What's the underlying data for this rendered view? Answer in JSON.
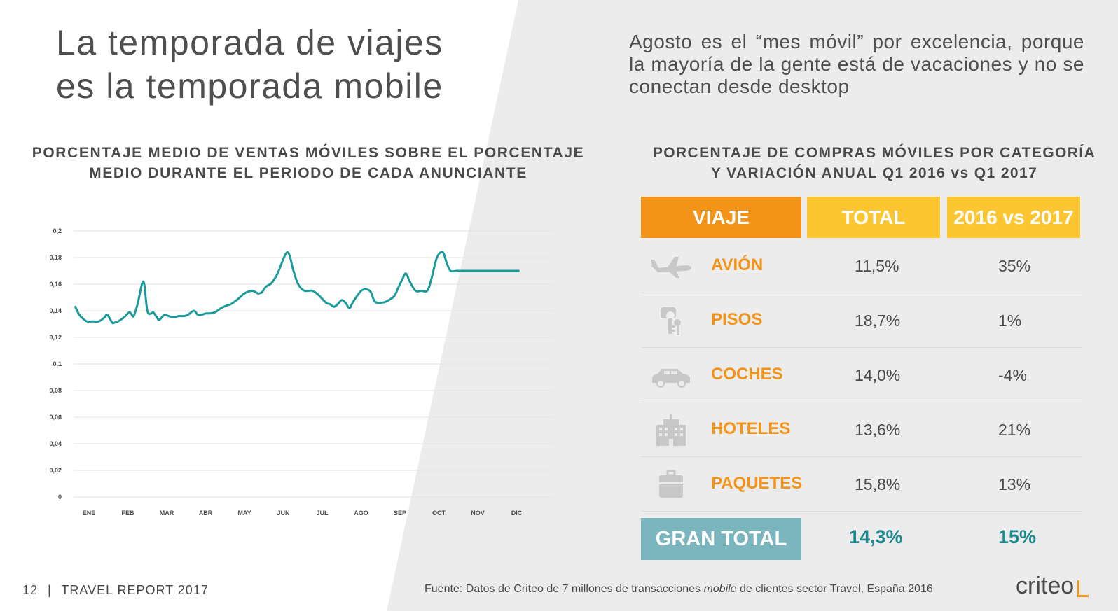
{
  "title_lines": [
    "La temporada de viajes",
    "es la temporada mobile"
  ],
  "intro": "Agosto es el “mes móvil” por excelencia, porque la mayoría de la gente está de vacaciones y no se conectan desde desktop",
  "chart_title_lines": [
    "PORCENTAJE MEDIO DE VENTAS MÓVILES SOBRE EL PORCENTAJE",
    "MEDIO DURANTE EL PERIODO DE CADA ANUNCIANTE"
  ],
  "table_title_lines": [
    "PORCENTAJE DE COMPRAS MÓVILES POR CATEGORÍA",
    "Y VARIACIÓN ANUAL Q1 2016 vs Q1 2017"
  ],
  "table": {
    "headers": {
      "category": "VIAJE",
      "total": "TOTAL",
      "variation": "2016 vs 2017"
    },
    "rows": [
      {
        "icon": "airplane-icon",
        "category": "AVIÓN",
        "total": "11,5%",
        "variation": "35%"
      },
      {
        "icon": "keys-icon",
        "category": "PISOS",
        "total": "18,7%",
        "variation": "1%"
      },
      {
        "icon": "car-icon",
        "category": "COCHES",
        "total": "14,0%",
        "variation": "-4%"
      },
      {
        "icon": "hotel-icon",
        "category": "HOTELES",
        "total": "13,6%",
        "variation": "21%"
      },
      {
        "icon": "suitcase-icon",
        "category": "PAQUETES",
        "total": "15,8%",
        "variation": "13%"
      }
    ],
    "grand_total": {
      "label": "GRAN TOTAL",
      "total": "14,3%",
      "variation": "15%"
    }
  },
  "footer": {
    "page": "12",
    "divider": "|",
    "report": "TRAVEL REPORT 2017",
    "source_before": "Fuente: Datos de Criteo de 7 millones de transacciones ",
    "source_italic": "mobile",
    "source_after": " de clientes sector Travel, España 2016",
    "logo": "criteo"
  },
  "colors": {
    "orange": "#f39318",
    "yellow": "#fcc630",
    "teal_line": "#1a9a9a",
    "teal_box": "#7bb6bf",
    "teal_text": "#1e8a90",
    "icon_gray": "#c8c8c8"
  },
  "chart_data": {
    "type": "line",
    "title": "",
    "xlabel": "",
    "ylabel": "",
    "categories": [
      "ENE",
      "FEB",
      "MAR",
      "ABR",
      "MAY",
      "JUN",
      "JUL",
      "AGO",
      "SEP",
      "OCT",
      "NOV",
      "DIC"
    ],
    "y_ticks": [
      "0",
      "0,02",
      "0,04",
      "0,06",
      "0,08",
      "0,1",
      "0,12",
      "0,14",
      "0,16",
      "0,18",
      "0,2"
    ],
    "ylim": [
      0,
      0.2
    ],
    "grid": true,
    "series": [
      {
        "x": [
          0.0,
          0.1,
          0.2,
          0.3,
          0.45,
          0.6,
          0.75,
          0.8,
          0.85,
          0.95,
          1.0,
          1.1,
          1.25,
          1.35,
          1.4,
          1.45,
          1.5,
          1.6,
          1.75,
          1.85,
          1.95,
          2.0,
          2.05,
          2.1,
          2.15,
          2.22,
          2.3,
          2.4,
          2.55,
          2.65,
          2.8,
          2.9,
          3.05,
          3.15,
          3.25,
          3.35,
          3.45,
          3.6,
          3.75,
          3.9,
          4.0,
          4.15,
          4.35,
          4.55,
          4.7,
          4.8,
          4.9,
          5.05,
          5.2,
          5.45,
          5.6,
          5.7,
          5.8,
          5.9,
          6.0,
          6.1,
          6.25,
          6.45,
          6.55,
          6.65,
          6.75,
          6.85,
          6.95,
          7.05,
          7.15,
          7.35,
          7.5,
          7.6,
          7.7,
          7.85,
          8.0,
          8.2,
          8.3,
          8.4,
          8.5,
          8.6,
          8.75,
          8.9,
          9.05,
          9.15,
          9.3,
          9.45,
          9.55,
          9.65,
          9.8,
          9.95,
          10.1,
          10.25,
          10.35,
          10.5,
          10.6,
          10.7,
          10.8,
          10.9,
          11.0,
          11.1,
          11.25,
          11.4
        ],
        "y": [
          0.143,
          0.137,
          0.134,
          0.132,
          0.132,
          0.132,
          0.135,
          0.137,
          0.136,
          0.131,
          0.131,
          0.132,
          0.135,
          0.138,
          0.139,
          0.137,
          0.136,
          0.145,
          0.162,
          0.14,
          0.138,
          0.139,
          0.137,
          0.135,
          0.133,
          0.135,
          0.137,
          0.136,
          0.135,
          0.136,
          0.136,
          0.137,
          0.14,
          0.137,
          0.137,
          0.138,
          0.138,
          0.139,
          0.142,
          0.144,
          0.145,
          0.148,
          0.153,
          0.155,
          0.153,
          0.154,
          0.158,
          0.161,
          0.168,
          0.184,
          0.171,
          0.162,
          0.157,
          0.155,
          0.155,
          0.155,
          0.152,
          0.146,
          0.145,
          0.143,
          0.145,
          0.148,
          0.146,
          0.142,
          0.147,
          0.155,
          0.156,
          0.154,
          0.147,
          0.146,
          0.147,
          0.151,
          0.157,
          0.163,
          0.168,
          0.162,
          0.155,
          0.155,
          0.155,
          0.163,
          0.18,
          0.184,
          0.176,
          0.17,
          0.17,
          0.17,
          0.17,
          0.17,
          0.17,
          0.17,
          0.17,
          0.17,
          0.17,
          0.17,
          0.17,
          0.17,
          0.17,
          0.17
        ]
      }
    ]
  }
}
